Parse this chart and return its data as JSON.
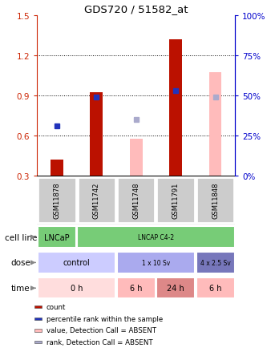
{
  "title": "GDS720 / 51582_at",
  "samples": [
    "GSM11878",
    "GSM11742",
    "GSM11748",
    "GSM11791",
    "GSM11848"
  ],
  "ylim": [
    0.3,
    1.5
  ],
  "y_left_ticks": [
    0.3,
    0.6,
    0.9,
    1.2,
    1.5
  ],
  "y_right_ticks": [
    0,
    25,
    50,
    75,
    100
  ],
  "bar_red_values": [
    0.42,
    0.92,
    null,
    1.32,
    null
  ],
  "bar_pink_values": [
    null,
    null,
    0.575,
    null,
    1.07
  ],
  "dot_blue_values": [
    0.67,
    0.885,
    null,
    0.935,
    null
  ],
  "dot_lavender_values": [
    null,
    null,
    0.72,
    null,
    0.885
  ],
  "bar_red_color": "#bb1100",
  "bar_pink_color": "#ffbbbb",
  "dot_blue_color": "#2233bb",
  "dot_lavender_color": "#aaaacc",
  "bar_width": 0.32,
  "cell_line_spans": [
    1,
    4
  ],
  "cell_line_texts": [
    "LNCaP",
    "LNCAP C4-2"
  ],
  "cell_line_color": "#77cc77",
  "dose_spans": [
    2,
    2,
    1
  ],
  "dose_texts": [
    "control",
    "1 x 10 Sv",
    "4 x 2.5 Sv"
  ],
  "dose_colors": [
    "#ccccff",
    "#aaaaee",
    "#7777bb"
  ],
  "time_spans": [
    2,
    1,
    1,
    1
  ],
  "time_texts": [
    "0 h",
    "6 h",
    "24 h",
    "6 h"
  ],
  "time_colors": [
    "#ffdddd",
    "#ffbbbb",
    "#dd8888",
    "#ffbbbb"
  ],
  "legend_items": [
    {
      "color": "#bb1100",
      "label": "count"
    },
    {
      "color": "#2233bb",
      "label": "percentile rank within the sample"
    },
    {
      "color": "#ffbbbb",
      "label": "value, Detection Call = ABSENT"
    },
    {
      "color": "#aaaacc",
      "label": "rank, Detection Call = ABSENT"
    }
  ],
  "sample_box_color": "#cccccc",
  "left_axis_color": "#cc2200",
  "right_axis_color": "#0000cc",
  "grid_color": "#000000"
}
